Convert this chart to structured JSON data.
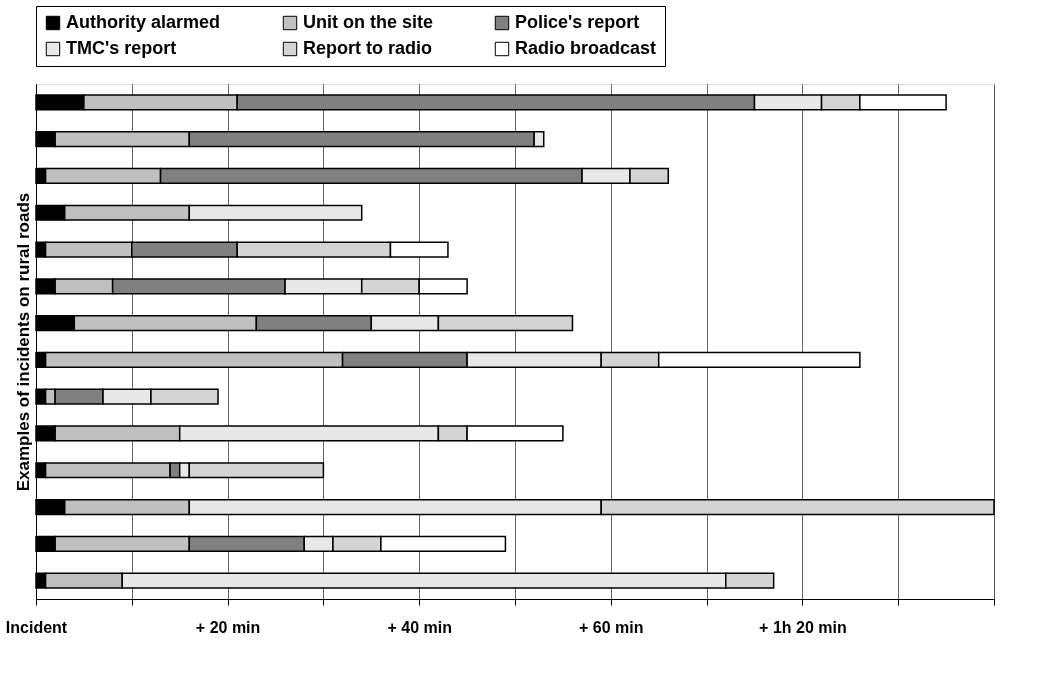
{
  "chart_data": {
    "type": "bar",
    "orientation": "horizontal",
    "stacked": true,
    "ylabel": "Examples of incidents on rural roads",
    "categories": [
      null,
      null,
      null,
      null,
      null,
      null,
      null,
      null,
      null,
      null,
      null,
      null,
      null,
      null
    ],
    "series": [
      {
        "name": "Authority alarmed",
        "color": "#000000",
        "values": [
          5,
          2,
          1,
          3,
          1,
          2,
          4,
          1,
          1,
          2,
          1,
          3,
          2,
          1
        ]
      },
      {
        "name": "Unit on the site",
        "color": "#c0c0c0",
        "values": [
          16,
          14,
          12,
          13,
          9,
          6,
          19,
          31,
          1,
          13,
          13,
          13,
          14,
          8
        ]
      },
      {
        "name": "Police's report",
        "color": "#808080",
        "values": [
          54,
          36,
          44,
          null,
          11,
          18,
          12,
          13,
          5,
          null,
          1,
          null,
          12,
          null
        ]
      },
      {
        "name": "TMC's report",
        "color": "#e8e8e8",
        "values": [
          7,
          1,
          5,
          18,
          null,
          8,
          7,
          14,
          5,
          27,
          1,
          43,
          3,
          63
        ]
      },
      {
        "name": "Report to radio",
        "color": "#d4d4d4",
        "values": [
          4,
          null,
          4,
          null,
          16,
          6,
          14,
          6,
          7,
          3,
          14,
          41,
          5,
          5
        ]
      },
      {
        "name": "Radio broadcast",
        "color": "#ffffff",
        "values": [
          9,
          null,
          null,
          null,
          6,
          5,
          null,
          21,
          null,
          10,
          null,
          null,
          13,
          null
        ]
      }
    ],
    "xlim": [
      0,
      100
    ],
    "xticks": [
      {
        "value": 0,
        "label": "Incident"
      },
      {
        "value": 10,
        "label": null
      },
      {
        "value": 20,
        "label": "+ 20 min"
      },
      {
        "value": 30,
        "label": null
      },
      {
        "value": 40,
        "label": "+ 40 min"
      },
      {
        "value": 50,
        "label": null
      },
      {
        "value": 60,
        "label": "+ 60 min"
      },
      {
        "value": 70,
        "label": null
      },
      {
        "value": 80,
        "label": "+ 1h 20 min"
      },
      {
        "value": 90,
        "label": null
      },
      {
        "value": 100,
        "label": null
      }
    ],
    "tick_labels": "x",
    "grid": "x",
    "legend": "top"
  }
}
